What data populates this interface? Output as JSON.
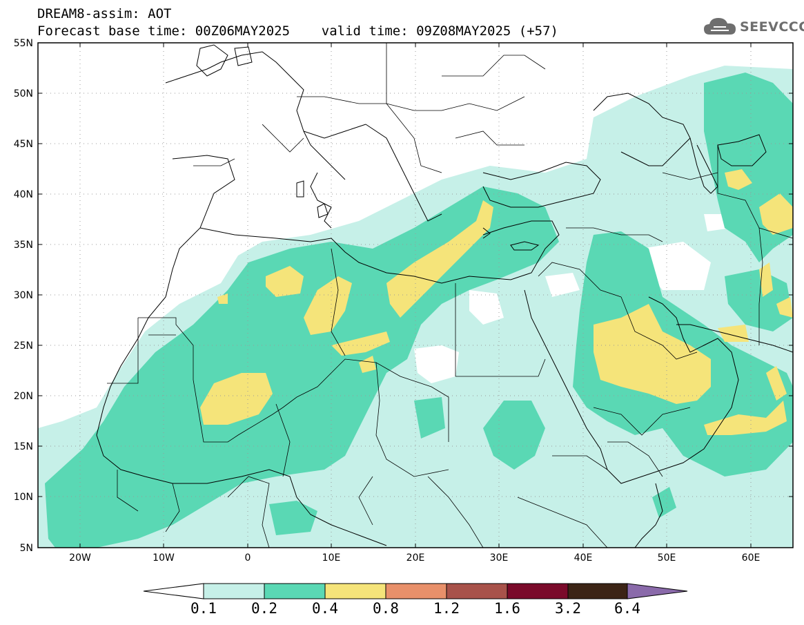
{
  "header": {
    "line1": "DREAM8-assim: AOT",
    "line2": "Forecast base time: 00Z06MAY2025    valid time: 09Z08MAY2025 (+57)"
  },
  "logo": {
    "text": "SEEVCCC",
    "icon": "cloud-icon"
  },
  "map": {
    "lat_labels": [
      "55N",
      "50N",
      "45N",
      "40N",
      "35N",
      "30N",
      "25N",
      "20N",
      "15N",
      "10N",
      "5N"
    ],
    "lon_labels": [
      "20W",
      "10W",
      "0",
      "10E",
      "20E",
      "30E",
      "40E",
      "50E",
      "60E"
    ],
    "grid": "dotted",
    "lon_range": [
      -25,
      65
    ],
    "lat_range": [
      5,
      55
    ]
  },
  "colorbar": {
    "labels": [
      "0.1",
      "0.2",
      "0.4",
      "0.8",
      "1.2",
      "1.6",
      "3.2",
      "6.4"
    ],
    "colors": [
      "#c6f0e8",
      "#5ad8b4",
      "#f5e47a",
      "#e8906a",
      "#a8524a",
      "#7a0a2a",
      "#3c2416",
      "#8a6aaa"
    ]
  },
  "colors": {
    "level1": "#c6f0e8",
    "level2": "#5ad8b4",
    "level3": "#f5e47a",
    "outline": "#000000"
  }
}
